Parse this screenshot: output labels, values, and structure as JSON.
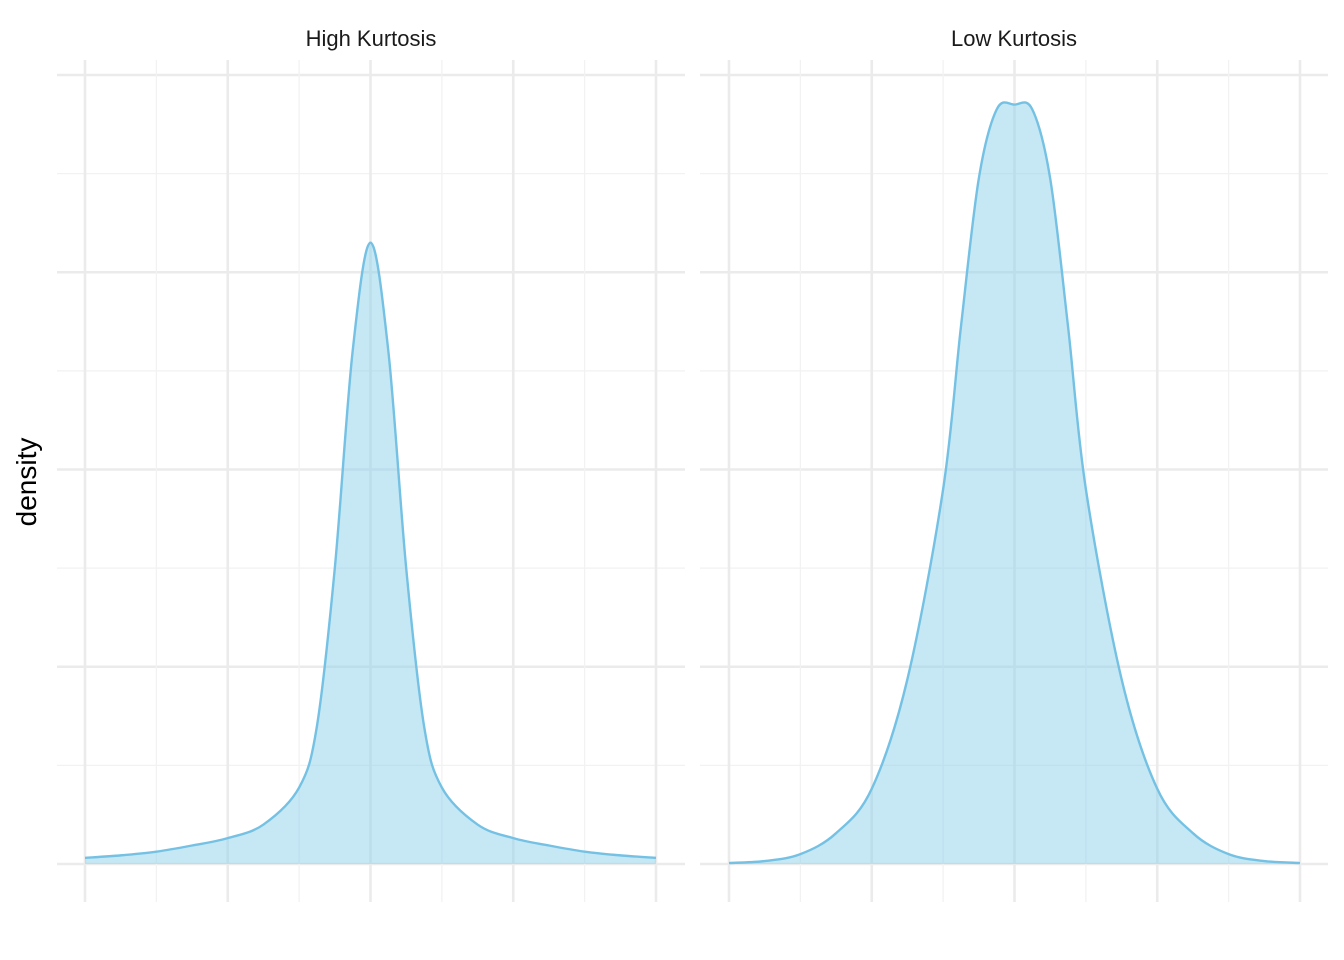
{
  "chart_data": [
    {
      "type": "area",
      "facet": "High Kurtosis",
      "xlabel": "",
      "ylabel": "density",
      "x_tick_labels": [],
      "y_tick_labels": [],
      "xlim": [
        -4,
        4
      ],
      "ylim": [
        0,
        0.32
      ],
      "grid": true,
      "x": [
        -4,
        -3.5,
        -3,
        -2.5,
        -2,
        -1.5,
        -1,
        -0.75,
        -0.5,
        -0.25,
        0,
        0.25,
        0.5,
        0.75,
        1,
        1.5,
        2,
        2.5,
        3,
        3.5,
        4
      ],
      "y": [
        0.0025,
        0.0035,
        0.005,
        0.0075,
        0.0105,
        0.016,
        0.031,
        0.056,
        0.12,
        0.208,
        0.252,
        0.208,
        0.12,
        0.056,
        0.031,
        0.016,
        0.0105,
        0.0075,
        0.005,
        0.0035,
        0.0025
      ]
    },
    {
      "type": "area",
      "facet": "Low Kurtosis",
      "xlabel": "",
      "ylabel": "density",
      "x_tick_labels": [],
      "y_tick_labels": [],
      "xlim": [
        -4,
        4
      ],
      "ylim": [
        0,
        0.32
      ],
      "grid": true,
      "x": [
        -4,
        -3.5,
        -3,
        -2.5,
        -2,
        -1.5,
        -1,
        -0.75,
        -0.5,
        -0.25,
        0,
        0.25,
        0.5,
        0.75,
        1,
        1.5,
        2,
        2.5,
        3,
        3.5,
        4
      ],
      "y": [
        0.0004,
        0.0012,
        0.004,
        0.0125,
        0.0305,
        0.075,
        0.152,
        0.218,
        0.278,
        0.306,
        0.308,
        0.306,
        0.278,
        0.218,
        0.152,
        0.075,
        0.0305,
        0.0125,
        0.004,
        0.0012,
        0.0004
      ]
    }
  ],
  "colors": {
    "fill": "#87CEEB",
    "line": "#74C1E4",
    "grid_major": "#EBEBEB",
    "grid_minor": "#F2F2F2"
  }
}
